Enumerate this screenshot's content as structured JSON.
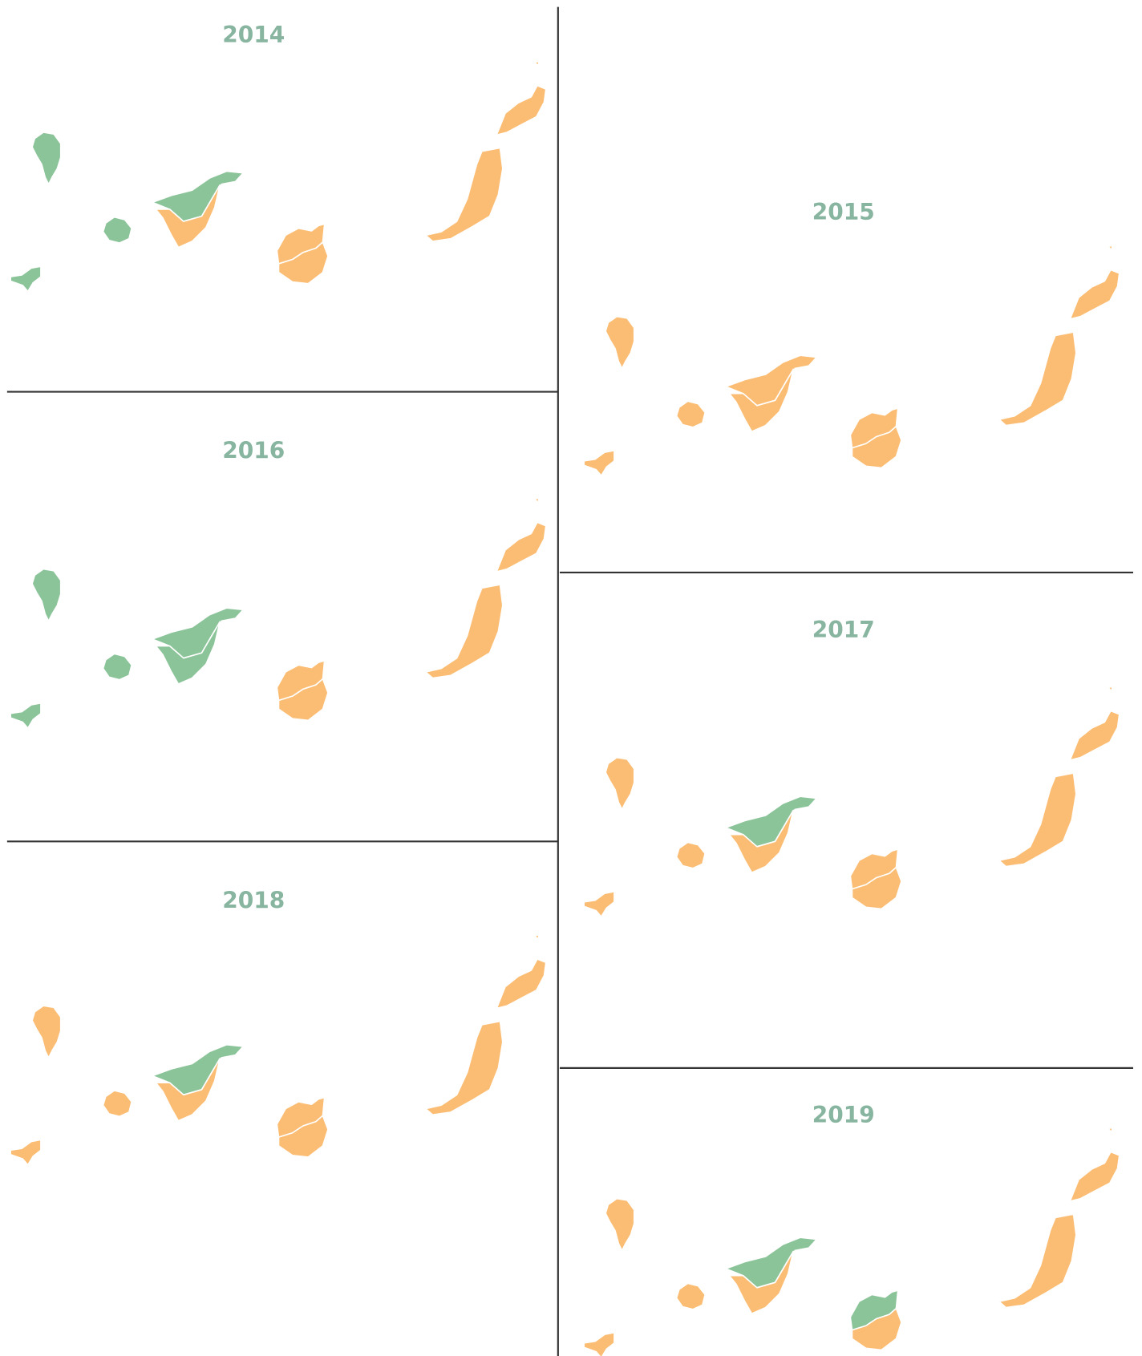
{
  "maps": [
    {
      "year": "2014",
      "colors": [
        "#8cc49a",
        "#8cc49a",
        "#8cc49a",
        "#8cc49a",
        "#fbbd74",
        "#fbbd74",
        "#fbbd74",
        "#fbbd74",
        "#fbbd74"
      ]
    },
    {
      "year": "2015",
      "colors": [
        "#fbbd74",
        "#fbbd74",
        "#fbbd74",
        "#fbbd74",
        "#fbbd74",
        "#fbbd74",
        "#fbbd74",
        "#fbbd74",
        "#fbbd74"
      ]
    },
    {
      "year": "2016",
      "colors": [
        "#8cc49a",
        "#8cc49a",
        "#8cc49a",
        "#8cc49a",
        "#8cc49a",
        "#fbbd74",
        "#fbbd74",
        "#fbbd74",
        "#fbbd74"
      ]
    },
    {
      "year": "2017",
      "colors": [
        "#fbbd74",
        "#fbbd74",
        "#fbbd74",
        "#8cc49a",
        "#fbbd74",
        "#fbbd74",
        "#fbbd74",
        "#fbbd74",
        "#fbbd74"
      ]
    },
    {
      "year": "2018",
      "colors": [
        "#fbbd74",
        "#fbbd74",
        "#fbbd74",
        "#8cc49a",
        "#fbbd74",
        "#fbbd74",
        "#fbbd74",
        "#fbbd74",
        "#fbbd74"
      ]
    },
    {
      "year": "2019",
      "colors": [
        "#fbbd74",
        "#fbbd74",
        "#fbbd74",
        "#8cc49a",
        "#fbbd74",
        "#8cc49a",
        "#fbbd74",
        "#fbbd74",
        "#fbbd74"
      ]
    }
  ]
}
